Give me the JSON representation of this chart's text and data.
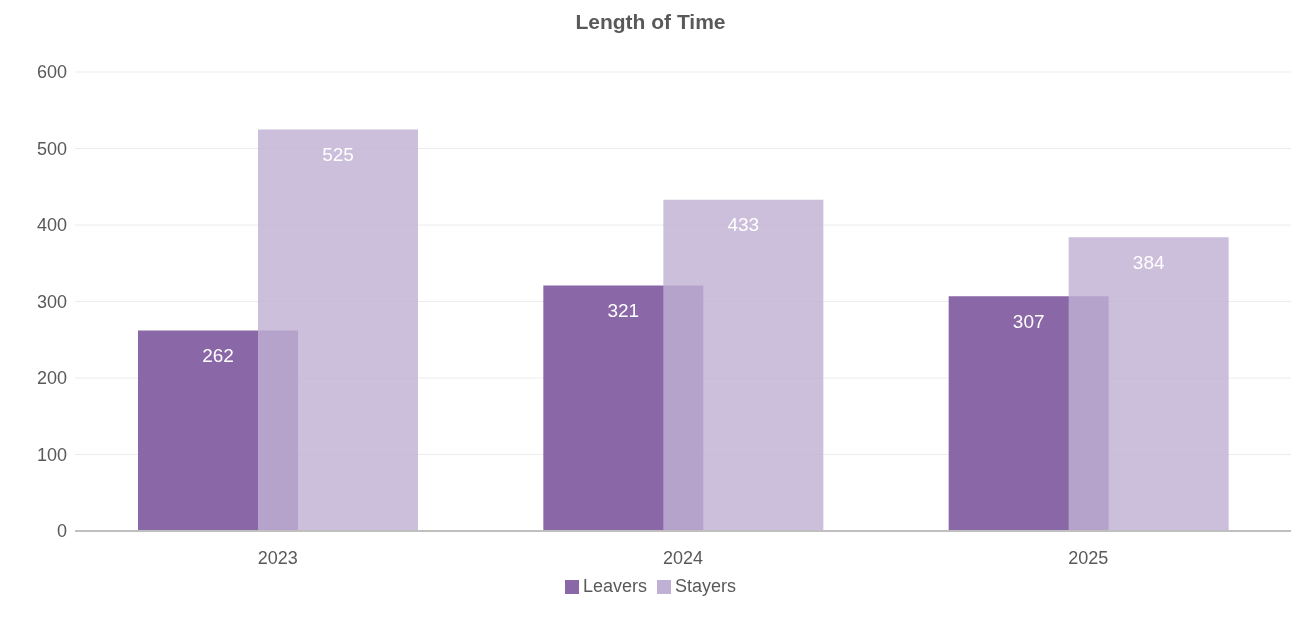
{
  "chart_data": {
    "type": "bar",
    "title": "Length of Time",
    "categories": [
      "2023",
      "2024",
      "2025"
    ],
    "series": [
      {
        "name": "Leavers",
        "color": "#8a67a6",
        "values": [
          262,
          321,
          307
        ]
      },
      {
        "name": "Stayers",
        "color": "#bfb1d3",
        "values": [
          525,
          433,
          384
        ]
      }
    ],
    "ylim": [
      0,
      600
    ],
    "yticks": [
      0,
      100,
      200,
      300,
      400,
      500,
      600
    ],
    "grid": "y",
    "legend": "bottom",
    "data_labels": true
  }
}
